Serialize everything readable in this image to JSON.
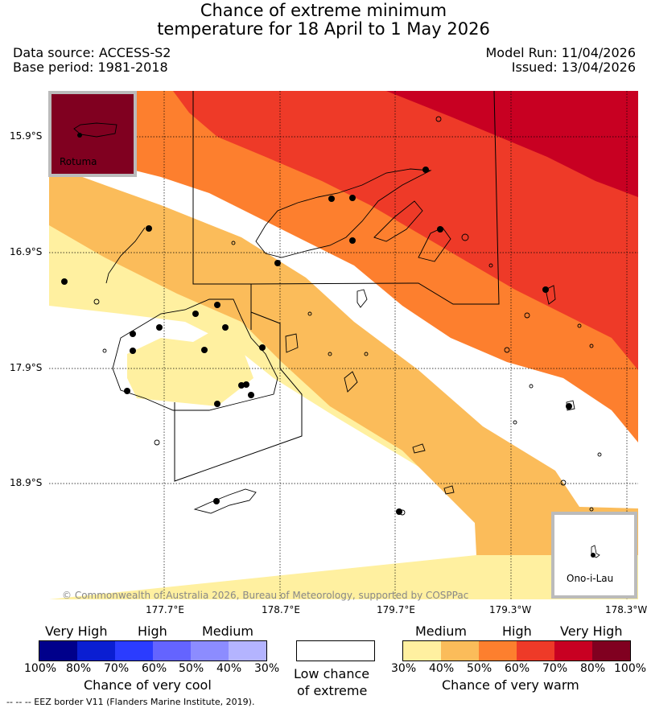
{
  "header": {
    "title_line1": "Chance of extreme minimum",
    "title_line2": "temperature for 18 April to 1 May 2026",
    "data_source": "Data source: ACCESS-S2",
    "base_period": "Base period: 1981-2018",
    "model_run": "Model Run: 11/04/2026",
    "issued": "Issued: 13/04/2026"
  },
  "map": {
    "lat_labels": [
      "15.9°S",
      "16.9°S",
      "17.9°S",
      "18.9°S"
    ],
    "lon_labels": [
      "177.7°E",
      "178.7°E",
      "179.7°E",
      "179.3°W",
      "178.3°W"
    ],
    "copyright": "© Commonwealth of Australia 2026, Bureau of Meteorology, supported by COSPPac",
    "inset_rotuma": "Rotuma",
    "inset_ono": "Ono-i-Lau"
  },
  "legend": {
    "cool": {
      "headers": [
        "Very High",
        "High",
        "Medium"
      ],
      "ticks": [
        "100%",
        "80%",
        "70%",
        "60%",
        "50%",
        "40%",
        "30%"
      ],
      "title": "Chance of very cool",
      "colors": [
        "#00008b",
        "#0a1ed2",
        "#2b3cff",
        "#6464ff",
        "#8c8cff",
        "#b4b4ff"
      ]
    },
    "low": {
      "line1": "Low chance",
      "line2": "of extreme"
    },
    "warm": {
      "headers": [
        "Medium",
        "High",
        "Very High"
      ],
      "ticks": [
        "30%",
        "40%",
        "50%",
        "60%",
        "70%",
        "80%",
        "100%"
      ],
      "title": "Chance of very warm",
      "colors": [
        "#fff0a0",
        "#fbbc5a",
        "#fd7f2e",
        "#ee3a28",
        "#c80022",
        "#800020"
      ]
    }
  },
  "footer": {
    "eez_note": "-- -- -- EEZ border V11 (Flanders Marine Institute, 2019)."
  }
}
